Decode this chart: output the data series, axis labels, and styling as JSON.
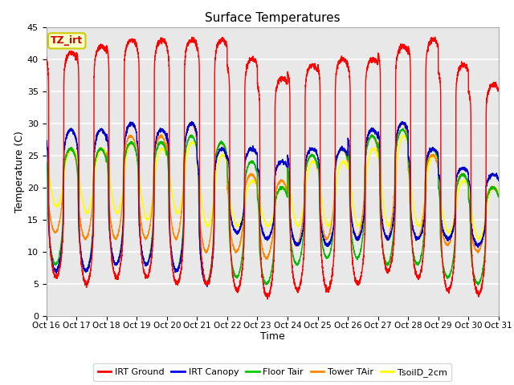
{
  "title": "Surface Temperatures",
  "xlabel": "Time",
  "ylabel": "Temperature (C)",
  "ylim": [
    0,
    45
  ],
  "xtick_labels": [
    "Oct 16",
    "Oct 17",
    "Oct 18",
    "Oct 19",
    "Oct 20",
    "Oct 21",
    "Oct 22",
    "Oct 23",
    "Oct 24",
    "Oct 25",
    "Oct 26",
    "Oct 27",
    "Oct 28",
    "Oct 29",
    "Oct 30",
    "Oct 31"
  ],
  "annotation_text": "TZ_irt",
  "annotation_bg": "#ffffcc",
  "annotation_border": "#cccc00",
  "annotation_text_color": "#cc0000",
  "legend_entries": [
    "IRT Ground",
    "IRT Canopy",
    "Floor Tair",
    "Tower TAir",
    "TsoilD_2cm"
  ],
  "legend_colors": [
    "#ff0000",
    "#0000ff",
    "#00cc00",
    "#ff8800",
    "#ffff00"
  ],
  "line_colors": {
    "irt_ground": "#ff0000",
    "irt_canopy": "#0000cc",
    "floor_tair": "#00bb00",
    "tower_tair": "#ff8800",
    "tsoil_2cm": "#ffff00"
  },
  "bg_color": "#e8e8e8",
  "grid_color": "#ffffff",
  "n_days": 15,
  "day_peaks_red": [
    41,
    42,
    43,
    43,
    43,
    43,
    40,
    37,
    39,
    40,
    40,
    42,
    43,
    39,
    36
  ],
  "day_mins_red": [
    6,
    5,
    6,
    6,
    5,
    5,
    4,
    3,
    4,
    4,
    5,
    7,
    6,
    4,
    3.5
  ],
  "day_peaks_blue": [
    29,
    29,
    30,
    29,
    30,
    26,
    26,
    24,
    26,
    26,
    29,
    30,
    26,
    23,
    22
  ],
  "day_mins_blue": [
    7,
    7,
    8,
    8,
    7,
    5,
    13,
    12,
    11,
    11,
    12,
    12,
    12,
    12,
    11
  ],
  "day_peaks_green": [
    26,
    26,
    27,
    27,
    28,
    27,
    24,
    20,
    25,
    26,
    28,
    29,
    26,
    22,
    20
  ],
  "day_mins_green": [
    8,
    7,
    8,
    8,
    7,
    5,
    6,
    5,
    8,
    9,
    9,
    8,
    8,
    6,
    5
  ],
  "day_peaks_orange": [
    26,
    26,
    28,
    28,
    30,
    27,
    22,
    21,
    25,
    26,
    28,
    30,
    25,
    22,
    20
  ],
  "day_mins_orange": [
    13,
    12,
    12,
    12,
    12,
    10,
    10,
    9,
    11,
    12,
    12,
    12,
    12,
    11,
    10
  ],
  "day_peaks_yellow": [
    26,
    26,
    27,
    26,
    27,
    25,
    21,
    20,
    24,
    24,
    26,
    28,
    25,
    21,
    20
  ],
  "day_mins_yellow": [
    17,
    16,
    16,
    15,
    16,
    14,
    14,
    14,
    14,
    14,
    14,
    14,
    14,
    13,
    12
  ]
}
